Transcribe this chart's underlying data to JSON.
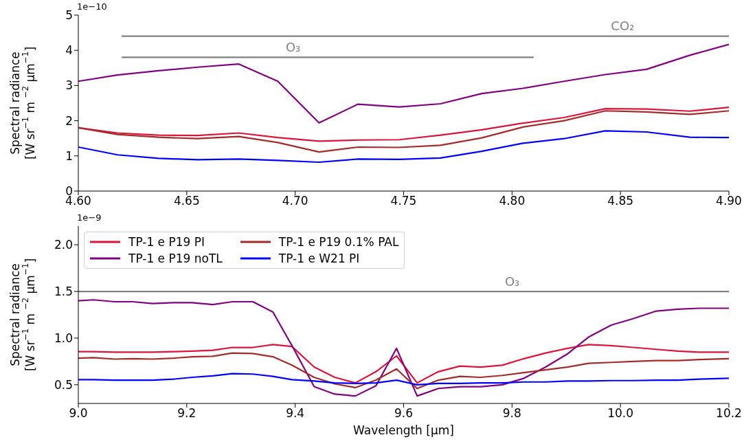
{
  "chart_data": [
    {
      "type": "line",
      "ylabel": "Spectral radiance\n[W sr$^{−1}$ m $^{−2}$ μm$^{−1}$]",
      "x": [
        4.6,
        4.618,
        4.637,
        4.655,
        4.674,
        4.692,
        4.711,
        4.729,
        4.748,
        4.767,
        4.786,
        4.805,
        4.824,
        4.843,
        4.862,
        4.882,
        4.9
      ],
      "series": [
        {
          "color": "#dc143c",
          "values": [
            1.8,
            1.65,
            1.59,
            1.58,
            1.65,
            1.52,
            1.42,
            1.45,
            1.46,
            1.59,
            1.74,
            1.93,
            2.09,
            2.34,
            2.33,
            2.27,
            2.38
          ]
        },
        {
          "color": "#800080",
          "values": [
            3.12,
            3.3,
            3.42,
            3.52,
            3.61,
            3.12,
            1.94,
            2.47,
            2.39,
            2.48,
            2.77,
            2.92,
            3.12,
            3.31,
            3.46,
            3.86,
            4.17
          ]
        },
        {
          "color": "#a52a2a",
          "values": [
            1.8,
            1.61,
            1.53,
            1.49,
            1.55,
            1.38,
            1.11,
            1.25,
            1.24,
            1.3,
            1.51,
            1.82,
            2.0,
            2.28,
            2.25,
            2.18,
            2.28
          ]
        },
        {
          "color": "#0000ff",
          "values": [
            1.25,
            1.03,
            0.93,
            0.89,
            0.91,
            0.87,
            0.82,
            0.91,
            0.9,
            0.94,
            1.13,
            1.36,
            1.49,
            1.71,
            1.68,
            1.53,
            1.52
          ]
        },
        {
          "type": "line",
          "name": "CO₂",
          "color": "#808080",
          "x": [
            4.62,
            4.9
          ],
          "values": [
            4.4,
            4.4
          ]
        },
        {
          "type": "line",
          "name": "O₃",
          "color": "#808080",
          "x": [
            4.62,
            4.81
          ],
          "values": [
            3.8,
            3.8
          ]
        }
      ],
      "annotations": [
        "1e−10"
      ],
      "xlim": [
        4.6,
        4.9
      ],
      "xticks": [
        {
          "value": 4.6,
          "label": "4.60"
        },
        {
          "value": 4.65,
          "label": "4.65"
        },
        {
          "value": 4.7,
          "label": "4.70"
        },
        {
          "value": 4.75,
          "label": "4.75"
        },
        {
          "value": 4.8,
          "label": "4.80"
        },
        {
          "value": 4.85,
          "label": "4.85"
        },
        {
          "value": 4.9,
          "label": "4.90"
        }
      ],
      "ylim": [
        0,
        5
      ],
      "yticks": [
        0,
        1,
        2,
        3,
        4,
        5
      ],
      "grid": false,
      "legend": false
    },
    {
      "type": "line",
      "ylabel": "Spectral radiance\n[W sr$^{−1}$ m $^{−2}$ μm$^{−1}$]",
      "xlabel": "Wavelength [µm]",
      "x": [
        9.0,
        9.028,
        9.067,
        9.1,
        9.137,
        9.175,
        9.21,
        9.248,
        9.284,
        9.322,
        9.359,
        9.394,
        9.435,
        9.473,
        9.511,
        9.549,
        9.587,
        9.625,
        9.664,
        9.704,
        9.742,
        9.782,
        9.822,
        9.862,
        9.902,
        9.941,
        9.983,
        10.024,
        10.066,
        10.106,
        10.145,
        10.2
      ],
      "series": [
        {
          "name": "TP-1 e P19 PI",
          "color": "#dc143c",
          "values": [
            0.855,
            0.855,
            0.85,
            0.85,
            0.85,
            0.855,
            0.86,
            0.87,
            0.9,
            0.9,
            0.93,
            0.91,
            0.69,
            0.58,
            0.52,
            0.64,
            0.81,
            0.52,
            0.64,
            0.7,
            0.69,
            0.71,
            0.78,
            0.84,
            0.89,
            0.93,
            0.92,
            0.9,
            0.88,
            0.86,
            0.85,
            0.85
          ]
        },
        {
          "name": "TP-1 e P19 noTL",
          "color": "#800080",
          "values": [
            1.4,
            1.41,
            1.39,
            1.39,
            1.37,
            1.38,
            1.38,
            1.36,
            1.39,
            1.39,
            1.28,
            0.92,
            0.48,
            0.4,
            0.38,
            0.49,
            0.89,
            0.38,
            0.46,
            0.48,
            0.48,
            0.5,
            0.57,
            0.69,
            0.83,
            1.01,
            1.14,
            1.21,
            1.29,
            1.31,
            1.32,
            1.32
          ]
        },
        {
          "name": "TP-1 e P19 0.1% PAL",
          "color": "#a52a2a",
          "values": [
            0.785,
            0.79,
            0.775,
            0.78,
            0.775,
            0.785,
            0.8,
            0.805,
            0.84,
            0.835,
            0.8,
            0.71,
            0.58,
            0.51,
            0.47,
            0.55,
            0.67,
            0.46,
            0.55,
            0.59,
            0.58,
            0.6,
            0.63,
            0.66,
            0.69,
            0.73,
            0.74,
            0.75,
            0.76,
            0.76,
            0.77,
            0.78
          ]
        },
        {
          "name": "TP-1 e W21 PI",
          "color": "#0000ff",
          "values": [
            0.555,
            0.555,
            0.55,
            0.55,
            0.55,
            0.56,
            0.58,
            0.595,
            0.62,
            0.615,
            0.59,
            0.555,
            0.54,
            0.52,
            0.515,
            0.52,
            0.55,
            0.5,
            0.515,
            0.515,
            0.52,
            0.52,
            0.53,
            0.53,
            0.54,
            0.54,
            0.545,
            0.545,
            0.55,
            0.55,
            0.56,
            0.57
          ]
        },
        {
          "type": "line",
          "name": "O₃",
          "color": "#808080",
          "x": [
            9.0,
            10.2
          ],
          "values": [
            1.5,
            1.5
          ]
        }
      ],
      "annotations": [
        "1e−9"
      ],
      "xlim": [
        9.0,
        10.2
      ],
      "xticks": [
        {
          "value": 9.0,
          "label": "9.0"
        },
        {
          "value": 9.2,
          "label": "9.2"
        },
        {
          "value": 9.4,
          "label": "9.4"
        },
        {
          "value": 9.6,
          "label": "9.6"
        },
        {
          "value": 9.8,
          "label": "9.8"
        },
        {
          "value": 10.0,
          "label": "10.0"
        },
        {
          "value": 10.2,
          "label": "10.2"
        }
      ],
      "ylim": [
        0.3,
        2.2
      ],
      "yticks": [
        {
          "value": 0.5,
          "label": "0.5"
        },
        {
          "value": 1.0,
          "label": "1.0"
        },
        {
          "value": 1.5,
          "label": "1.5"
        },
        {
          "value": 2.0,
          "label": "2.0"
        }
      ],
      "grid": false,
      "legend": "top left"
    }
  ]
}
